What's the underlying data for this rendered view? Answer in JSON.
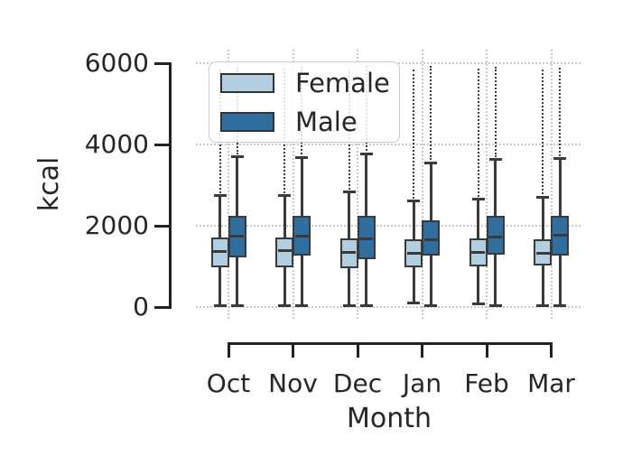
{
  "chart_data": {
    "type": "boxplot",
    "xlabel": "Month",
    "ylabel": "kcal",
    "categories": [
      "Oct",
      "Nov",
      "Dec",
      "Jan",
      "Feb",
      "Mar"
    ],
    "y_ticks": [
      0,
      2000,
      4000,
      6000
    ],
    "ylim": [
      0,
      6000
    ],
    "grid": "dotted, horizontal at y-ticks and vertical at categories",
    "legend_position": "upper left inside plot",
    "legend": [
      {
        "label": "Female",
        "color": "#b2cfe1"
      },
      {
        "label": "Male",
        "color": "#2f6e9e"
      }
    ],
    "colors": {
      "female_fill": "#b2cfe1",
      "male_fill": "#2f6e9e",
      "box_edge": "#3a3a3a",
      "spine": "#222222",
      "grid": "#c9c9c9",
      "text": "#262626"
    },
    "series": [
      {
        "name": "Female",
        "color": "#b2cfe1",
        "boxes": [
          {
            "category": "Oct",
            "whisker_low": 30,
            "q1": 980,
            "median": 1360,
            "q3": 1715,
            "whisker_high": 2740,
            "outlier_max": 5850
          },
          {
            "category": "Nov",
            "whisker_low": 30,
            "q1": 980,
            "median": 1380,
            "q3": 1715,
            "whisker_high": 2740,
            "outlier_max": 5860
          },
          {
            "category": "Dec",
            "whisker_low": 30,
            "q1": 960,
            "median": 1340,
            "q3": 1695,
            "whisker_high": 2830,
            "outlier_max": 5850
          },
          {
            "category": "Jan",
            "whisker_low": 90,
            "q1": 980,
            "median": 1320,
            "q3": 1670,
            "whisker_high": 2610,
            "outlier_max": 5850
          },
          {
            "category": "Feb",
            "whisker_low": 80,
            "q1": 1000,
            "median": 1340,
            "q3": 1695,
            "whisker_high": 2650,
            "outlier_max": 5860
          },
          {
            "category": "Mar",
            "whisker_low": 30,
            "q1": 1025,
            "median": 1315,
            "q3": 1675,
            "whisker_high": 2700,
            "outlier_max": 5840
          }
        ]
      },
      {
        "name": "Male",
        "color": "#2f6e9e",
        "boxes": [
          {
            "category": "Oct",
            "whisker_low": 30,
            "q1": 1225,
            "median": 1740,
            "q3": 2250,
            "whisker_high": 3690,
            "outlier_max": 5900
          },
          {
            "category": "Nov",
            "whisker_low": 30,
            "q1": 1270,
            "median": 1740,
            "q3": 2250,
            "whisker_high": 3680,
            "outlier_max": 5910
          },
          {
            "category": "Dec",
            "whisker_low": 30,
            "q1": 1180,
            "median": 1670,
            "q3": 2250,
            "whisker_high": 3770,
            "outlier_max": 5930
          },
          {
            "category": "Jan",
            "whisker_low": 30,
            "q1": 1270,
            "median": 1650,
            "q3": 2140,
            "whisker_high": 3550,
            "outlier_max": 5930
          },
          {
            "category": "Feb",
            "whisker_low": 30,
            "q1": 1290,
            "median": 1720,
            "q3": 2250,
            "whisker_high": 3630,
            "outlier_max": 5920
          },
          {
            "category": "Mar",
            "whisker_low": 30,
            "q1": 1270,
            "median": 1760,
            "q3": 2250,
            "whisker_high": 3650,
            "outlier_max": 5900
          }
        ]
      }
    ]
  }
}
